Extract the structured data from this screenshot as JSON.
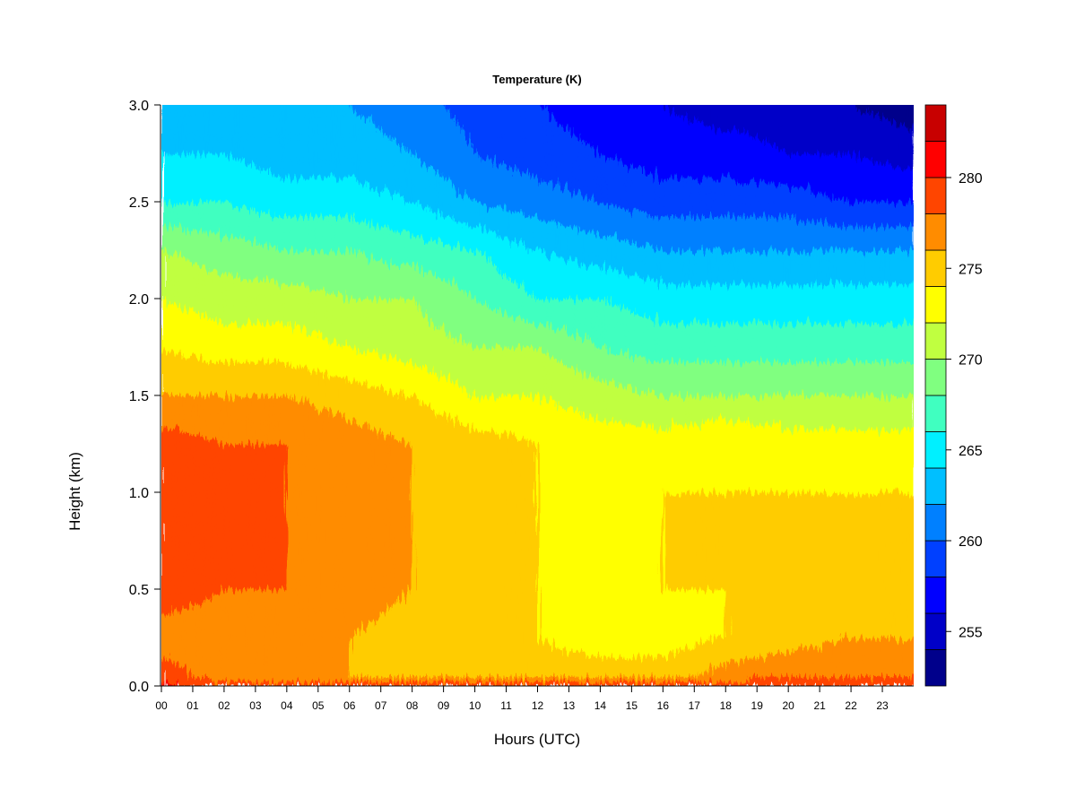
{
  "chart_data": {
    "type": "heatmap",
    "title": "Temperature (K)",
    "xlabel": "Hours (UTC)",
    "ylabel": "Height (km)",
    "xlim": [
      0,
      24
    ],
    "ylim": [
      0.0,
      3.0
    ],
    "x_ticks": [
      "00",
      "01",
      "02",
      "03",
      "04",
      "05",
      "06",
      "07",
      "08",
      "09",
      "10",
      "11",
      "12",
      "13",
      "14",
      "15",
      "16",
      "17",
      "18",
      "19",
      "20",
      "21",
      "22",
      "23"
    ],
    "y_ticks": [
      "0.0",
      "0.5",
      "1.0",
      "1.5",
      "2.0",
      "2.5",
      "3.0"
    ],
    "colorbar": {
      "levels": [
        252,
        254,
        256,
        258,
        260,
        262,
        264,
        266,
        268,
        270,
        272,
        274,
        276,
        278,
        280,
        282,
        284
      ],
      "colors": [
        "#00008b",
        "#0000c8",
        "#0000ff",
        "#0040ff",
        "#0080ff",
        "#00bfff",
        "#00f0ff",
        "#40ffc0",
        "#80ff80",
        "#c0ff40",
        "#ffff00",
        "#ffcc00",
        "#ff8c00",
        "#ff4500",
        "#ff0000",
        "#c80000",
        "#800000"
      ],
      "tick_values": [
        255,
        260,
        265,
        270,
        275,
        280
      ],
      "tick_labels": [
        "255",
        "260",
        "265",
        "270",
        "275",
        "280"
      ]
    },
    "field_summary": {
      "heights_km": [
        0.0,
        0.05,
        0.25,
        0.5,
        0.75,
        1.0,
        1.25,
        1.5,
        1.75,
        2.0,
        2.25,
        2.5,
        2.75,
        3.0
      ],
      "hours": [
        0,
        2,
        4,
        6,
        8,
        10,
        12,
        14,
        16,
        18,
        20,
        22,
        24
      ],
      "values_K": [
        [
          281,
          279,
          279,
          279,
          279,
          279,
          279,
          279,
          279,
          280,
          280,
          280,
          280
        ],
        [
          279,
          277,
          276,
          276,
          276,
          276,
          275,
          275,
          275,
          277,
          278,
          278,
          278
        ],
        [
          277,
          277,
          277,
          276,
          275,
          275,
          274,
          273,
          273,
          274,
          275,
          276,
          276
        ],
        [
          279,
          278,
          278,
          277,
          276,
          275,
          274,
          272,
          274,
          274,
          275,
          275,
          275
        ],
        [
          280,
          279,
          278,
          277,
          276,
          275,
          274,
          272,
          274,
          274,
          275,
          275,
          275
        ],
        [
          280,
          279,
          278,
          277,
          276,
          276,
          274,
          272,
          274,
          274,
          274,
          274,
          274
        ],
        [
          279,
          278,
          278,
          277,
          276,
          275,
          274,
          273,
          273,
          274,
          273,
          273,
          273
        ],
        [
          276,
          276,
          276,
          275,
          274,
          272,
          272,
          271,
          270,
          270,
          270,
          270,
          270
        ],
        [
          274,
          273,
          273,
          272,
          271,
          270,
          270,
          268,
          267,
          267,
          267,
          267,
          267
        ],
        [
          272,
          271,
          271,
          270,
          270,
          268,
          266,
          266,
          265,
          265,
          265,
          265,
          265
        ],
        [
          270,
          269,
          268,
          268,
          267,
          266,
          264,
          263,
          262,
          262,
          262,
          262,
          262
        ],
        [
          266,
          266,
          265,
          265,
          264,
          262,
          261,
          260,
          259,
          259,
          259,
          258,
          258
        ],
        [
          264,
          264,
          263,
          263,
          262,
          260,
          259,
          258,
          257,
          257,
          256,
          256,
          255
        ],
        [
          262,
          262,
          262,
          262,
          261,
          259,
          258,
          257,
          256,
          255,
          255,
          254,
          253
        ]
      ]
    }
  }
}
